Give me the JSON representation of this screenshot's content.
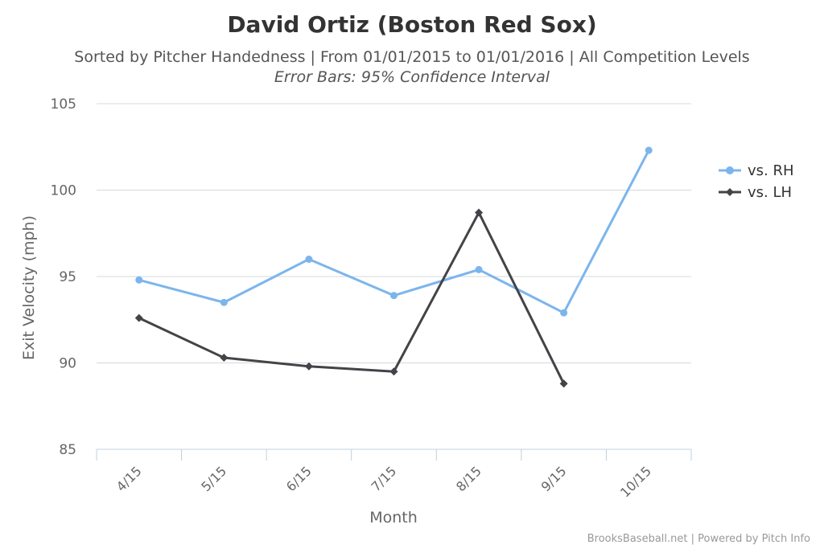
{
  "chart_data": {
    "type": "line",
    "title": "David Ortiz (Boston Red Sox)",
    "subtitle": "Sorted by Pitcher Handedness | From 01/01/2015 to 01/01/2016 | All Competition Levels",
    "subtitle2": "Error Bars: 95% Confidence Interval",
    "xlabel": "Month",
    "ylabel": "Exit Velocity (mph)",
    "categories": [
      "4/15",
      "5/15",
      "6/15",
      "7/15",
      "8/15",
      "9/15",
      "10/15"
    ],
    "ylim": [
      85,
      105
    ],
    "yticks": [
      85,
      90,
      95,
      100,
      105
    ],
    "grid": true,
    "legend_position": "right",
    "series": [
      {
        "name": "vs. RH",
        "color": "#7cb5ec",
        "marker": "circle",
        "values": [
          94.8,
          93.5,
          96.0,
          93.9,
          95.4,
          92.9,
          102.3
        ]
      },
      {
        "name": "vs. LH",
        "color": "#434348",
        "marker": "diamond",
        "values": [
          92.6,
          90.3,
          89.8,
          89.5,
          98.7,
          88.8,
          null
        ]
      }
    ]
  },
  "credits": "BrooksBaseball.net | Powered by Pitch Info"
}
